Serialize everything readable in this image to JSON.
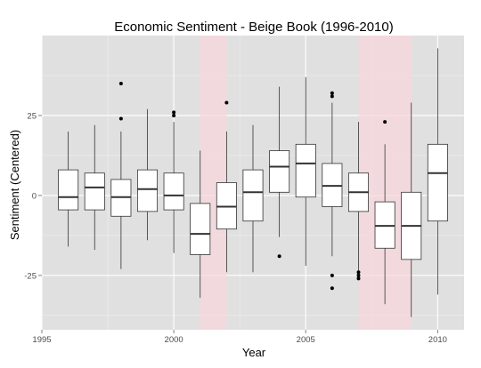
{
  "chart_data": {
    "type": "boxplot",
    "title": "Economic Sentiment - Beige Book (1996-2010)",
    "xlabel": "Year",
    "ylabel": "Sentiment (Centered)",
    "xlim": [
      1995,
      2011
    ],
    "ylim": [
      -42,
      50
    ],
    "x_ticks": [
      1995,
      2000,
      2005,
      2010
    ],
    "y_ticks": [
      25,
      0,
      -25
    ],
    "y_tick_labels": [
      "25",
      "0",
      "-25"
    ],
    "grid": true,
    "recession_bands": [
      [
        2001,
        2002
      ],
      [
        2007,
        2009
      ]
    ],
    "boxes": [
      {
        "year": 1996,
        "low": -16,
        "q1": -4.5,
        "median": -0.5,
        "q3": 8,
        "high": 20,
        "outliers": []
      },
      {
        "year": 1997,
        "low": -17,
        "q1": -4.5,
        "median": 2.5,
        "q3": 7,
        "high": 22,
        "outliers": []
      },
      {
        "year": 1998,
        "low": -23,
        "q1": -6.5,
        "median": -0.5,
        "q3": 5,
        "high": 20,
        "outliers": [
          35,
          24
        ]
      },
      {
        "year": 1999,
        "low": -14,
        "q1": -5,
        "median": 2,
        "q3": 8,
        "high": 27,
        "outliers": []
      },
      {
        "year": 2000,
        "low": -18,
        "q1": -4.5,
        "median": 0,
        "q3": 7,
        "high": 23,
        "outliers": [
          26,
          25
        ]
      },
      {
        "year": 2001,
        "low": -32,
        "q1": -18.5,
        "median": -12,
        "q3": -2.5,
        "high": 14,
        "outliers": []
      },
      {
        "year": 2002,
        "low": -24,
        "q1": -10.5,
        "median": -3.5,
        "q3": 4,
        "high": 20,
        "outliers": [
          29
        ]
      },
      {
        "year": 2003,
        "low": -24,
        "q1": -8,
        "median": 1,
        "q3": 8,
        "high": 22,
        "outliers": []
      },
      {
        "year": 2004,
        "low": -13,
        "q1": 1,
        "median": 9,
        "q3": 14,
        "high": 34,
        "outliers": [
          -19
        ]
      },
      {
        "year": 2005,
        "low": -22,
        "q1": -0.5,
        "median": 10,
        "q3": 16,
        "high": 37,
        "outliers": []
      },
      {
        "year": 2006,
        "low": -19,
        "q1": -3.5,
        "median": 3,
        "q3": 10,
        "high": 29,
        "outliers": [
          32,
          31,
          -25,
          -29
        ]
      },
      {
        "year": 2007,
        "low": -24,
        "q1": -5,
        "median": 1,
        "q3": 7,
        "high": 23,
        "outliers": [
          -24,
          -25,
          -26
        ]
      },
      {
        "year": 2008,
        "low": -34,
        "q1": -16.5,
        "median": -9.5,
        "q3": -2,
        "high": 16,
        "outliers": [
          23
        ]
      },
      {
        "year": 2009,
        "low": -38,
        "q1": -20,
        "median": -9.5,
        "q3": 1,
        "high": 29,
        "outliers": []
      },
      {
        "year": 2010,
        "low": -31,
        "q1": -8,
        "median": 7,
        "q3": 16,
        "high": 46,
        "outliers": []
      }
    ]
  },
  "colors": {
    "panel_bg": "#e0e0e0",
    "gridline": "#ffffff",
    "recession_band": "#f9d6dc",
    "box_fill": "#ffffff",
    "box_stroke": "#333333",
    "text": "#000000",
    "tick_text": "#4d4d4d"
  }
}
